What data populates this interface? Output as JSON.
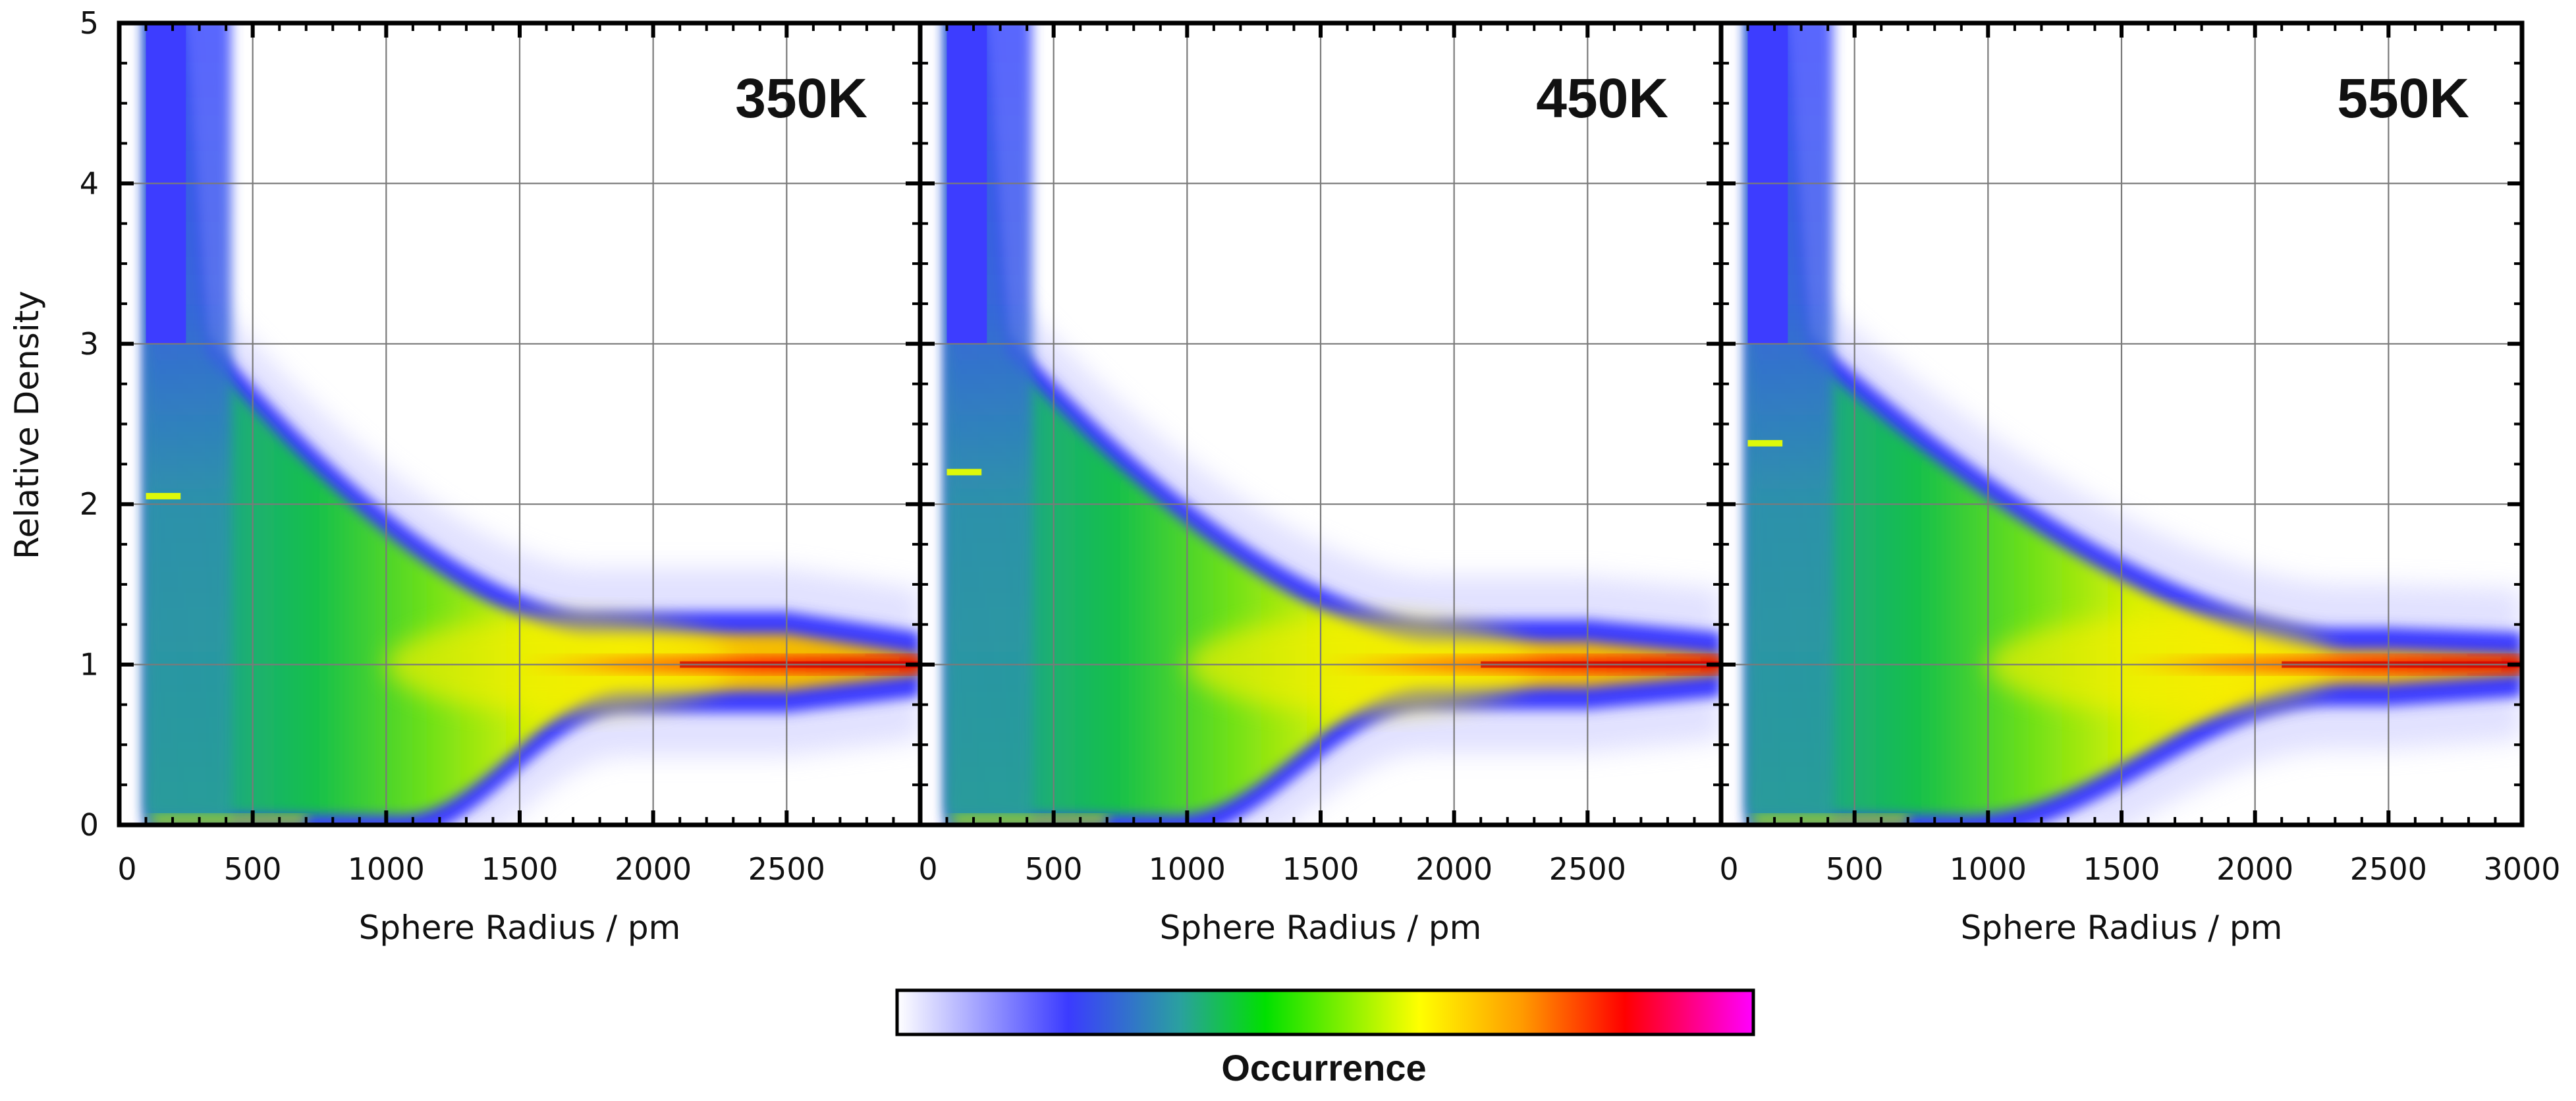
{
  "chart_data": {
    "type": "heatmap",
    "description_kind": "2D histogram panels sharing y axis",
    "x_range": [
      0,
      3000
    ],
    "y_range": [
      0,
      5
    ],
    "x_ticks": [
      0,
      500,
      1000,
      1500,
      2000,
      2500,
      3000
    ],
    "y_ticks": [
      0,
      1,
      2,
      3,
      4,
      5
    ],
    "x_tick_labels_left_panels": [
      "0",
      "500",
      "1000",
      "1500",
      "2000",
      "2500"
    ],
    "x_tick_labels_last_panel": [
      "0",
      "500",
      "1000",
      "1500",
      "2000",
      "2500",
      "3000"
    ],
    "y_tick_labels": [
      "0",
      "1",
      "2",
      "3",
      "4",
      "5"
    ],
    "xlabel": "Sphere Radius / pm",
    "ylabel": "Relative Density",
    "panels": [
      {
        "label": "350K",
        "spike_y": 2.05,
        "upper_decay_end_x": 1750,
        "lower_rise_x": [
          1050,
          1900
        ],
        "plateau_hi": 1.25,
        "plateau_lo": 0.78
      },
      {
        "label": "450K",
        "spike_y": 2.2,
        "upper_decay_end_x": 1900,
        "lower_rise_x": [
          950,
          1900
        ],
        "plateau_hi": 1.2,
        "plateau_lo": 0.8
      },
      {
        "label": "550K",
        "spike_y": 2.38,
        "upper_decay_end_x": 2300,
        "lower_rise_x": [
          900,
          2300
        ],
        "plateau_hi": 1.15,
        "plateau_lo": 0.82
      }
    ],
    "colorbar": {
      "title": "Occurrence",
      "stops": [
        "#ffffff",
        "#3b3bff",
        "#2aa0a0",
        "#00e000",
        "#ffff00",
        "#ff9a00",
        "#ff0000",
        "#ff00ff"
      ]
    }
  }
}
